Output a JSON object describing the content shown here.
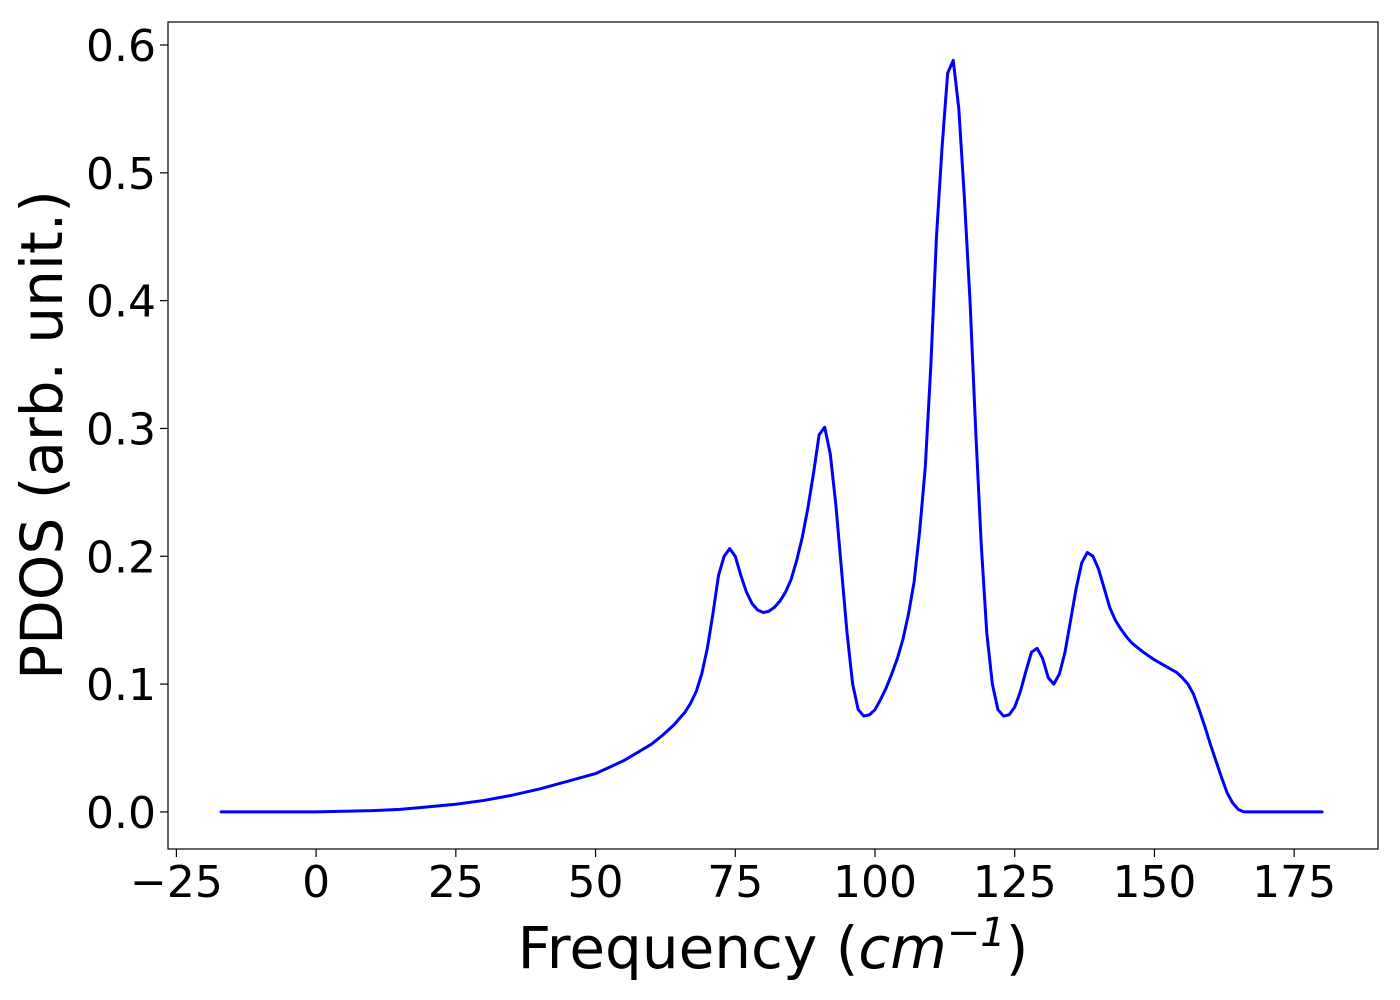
{
  "chart_data": {
    "type": "line",
    "title": "",
    "xlabel": {
      "prefix": "Frequency (",
      "math_base": "cm",
      "math_sup": "−1",
      "suffix": ")"
    },
    "ylabel": "PDOS (arb. unit.)",
    "xlim": [
      -26.5,
      190
    ],
    "ylim": [
      -0.029,
      0.618
    ],
    "xticks": [
      {
        "value": -25,
        "label": "−25"
      },
      {
        "value": 0,
        "label": "0"
      },
      {
        "value": 25,
        "label": "25"
      },
      {
        "value": 50,
        "label": "50"
      },
      {
        "value": 75,
        "label": "75"
      },
      {
        "value": 100,
        "label": "100"
      },
      {
        "value": 125,
        "label": "125"
      },
      {
        "value": 150,
        "label": "150"
      },
      {
        "value": 175,
        "label": "175"
      }
    ],
    "yticks": [
      {
        "value": 0.0,
        "label": "0.0"
      },
      {
        "value": 0.1,
        "label": "0.1"
      },
      {
        "value": 0.2,
        "label": "0.2"
      },
      {
        "value": 0.3,
        "label": "0.3"
      },
      {
        "value": 0.4,
        "label": "0.4"
      },
      {
        "value": 0.5,
        "label": "0.5"
      },
      {
        "value": 0.6,
        "label": "0.6"
      }
    ],
    "grid": false,
    "legend": false,
    "series": [
      {
        "color": "#0000ff",
        "x": [
          -17,
          -10,
          0,
          5,
          10,
          15,
          20,
          25,
          30,
          35,
          40,
          45,
          50,
          55,
          60,
          62,
          64,
          66,
          67,
          68,
          69,
          70,
          71,
          72,
          73,
          74,
          75,
          76,
          77,
          78,
          79,
          80,
          81,
          82,
          83,
          84,
          85,
          86,
          87,
          88,
          89,
          90,
          91,
          92,
          93,
          94,
          95,
          96,
          97,
          98,
          99,
          100,
          101,
          102,
          103,
          104,
          105,
          106,
          107,
          108,
          109,
          110,
          111,
          112,
          113,
          114,
          115,
          116,
          117,
          118,
          119,
          120,
          121,
          122,
          123,
          124,
          125,
          126,
          127,
          128,
          129,
          130,
          131,
          132,
          133,
          134,
          135,
          136,
          137,
          138,
          139,
          140,
          141,
          142,
          143,
          144,
          145,
          146,
          148,
          150,
          152,
          154,
          155,
          156,
          157,
          158,
          159,
          160,
          161,
          162,
          163,
          164,
          165,
          166,
          167,
          168,
          170,
          175,
          180
        ],
        "y": [
          0.0,
          0.0,
          0.0,
          0.0005,
          0.001,
          0.002,
          0.004,
          0.006,
          0.009,
          0.013,
          0.018,
          0.024,
          0.03,
          0.04,
          0.053,
          0.06,
          0.068,
          0.078,
          0.085,
          0.094,
          0.108,
          0.128,
          0.155,
          0.185,
          0.2,
          0.206,
          0.2,
          0.185,
          0.172,
          0.163,
          0.158,
          0.156,
          0.157,
          0.16,
          0.165,
          0.172,
          0.182,
          0.197,
          0.215,
          0.238,
          0.265,
          0.295,
          0.301,
          0.28,
          0.24,
          0.19,
          0.14,
          0.1,
          0.08,
          0.075,
          0.076,
          0.08,
          0.088,
          0.097,
          0.108,
          0.12,
          0.135,
          0.155,
          0.18,
          0.22,
          0.27,
          0.35,
          0.45,
          0.52,
          0.578,
          0.588,
          0.55,
          0.48,
          0.4,
          0.3,
          0.21,
          0.14,
          0.1,
          0.08,
          0.075,
          0.076,
          0.082,
          0.094,
          0.11,
          0.125,
          0.128,
          0.12,
          0.105,
          0.1,
          0.108,
          0.125,
          0.15,
          0.175,
          0.195,
          0.203,
          0.2,
          0.19,
          0.175,
          0.16,
          0.15,
          0.143,
          0.137,
          0.132,
          0.125,
          0.119,
          0.114,
          0.109,
          0.105,
          0.1,
          0.092,
          0.08,
          0.067,
          0.053,
          0.04,
          0.027,
          0.015,
          0.007,
          0.002,
          0.0,
          0.0,
          0.0,
          0.0,
          0.0,
          0.0
        ]
      }
    ]
  }
}
